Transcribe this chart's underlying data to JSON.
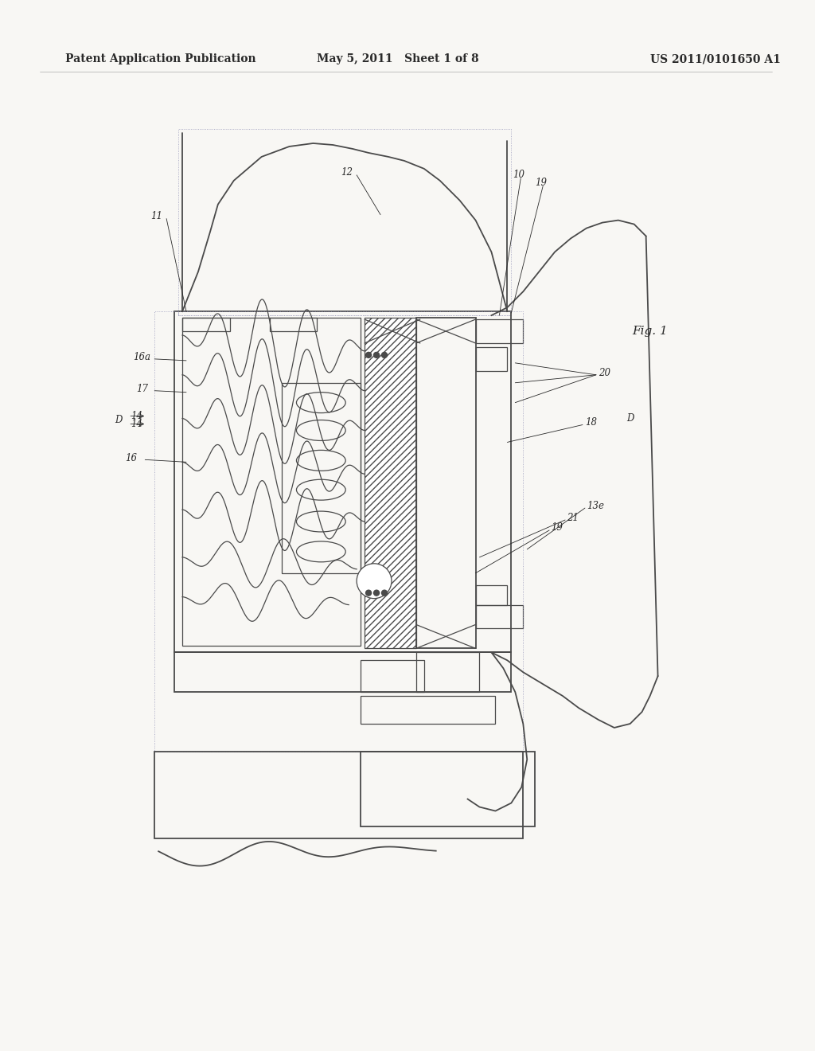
{
  "header_left": "Patent Application Publication",
  "header_mid": "May 5, 2011   Sheet 1 of 8",
  "header_right": "US 2011/0101650 A1",
  "fig_label": "Fig. 1",
  "bg_color": "#f8f7f4",
  "line_color": "#4a4a4a",
  "text_color": "#2a2a2a",
  "header_font_size": 10,
  "label_font_size": 8.5
}
